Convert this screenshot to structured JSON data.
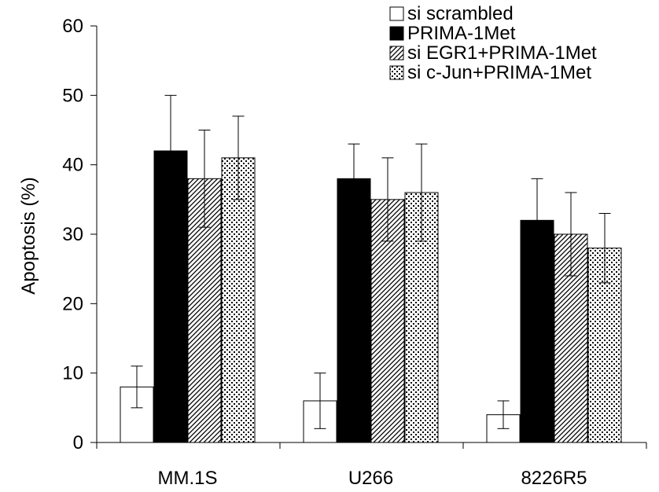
{
  "chart_data": {
    "type": "bar",
    "ylabel": "Apoptosis (%)",
    "xlabel": "",
    "ylim": [
      0,
      60
    ],
    "yticks": [
      0,
      10,
      20,
      30,
      40,
      50,
      60
    ],
    "categories": [
      "MM.1S",
      "U266",
      "8226R5"
    ],
    "legend_position": "top-right",
    "grid": false,
    "series": [
      {
        "name": "si scrambled",
        "fill": "white",
        "values": [
          8,
          6,
          4
        ],
        "errors": [
          3,
          4,
          2
        ]
      },
      {
        "name": "PRIMA-1Met",
        "fill": "black",
        "values": [
          42,
          38,
          32
        ],
        "errors": [
          8,
          5,
          6
        ]
      },
      {
        "name": "si EGR1+PRIMA-1Met",
        "fill": "diagonal-hatch",
        "values": [
          38,
          35,
          30
        ],
        "errors": [
          7,
          6,
          6
        ]
      },
      {
        "name": "si c-Jun+PRIMA-1Met",
        "fill": "dotted",
        "values": [
          41,
          36,
          28
        ],
        "errors": [
          6,
          7,
          5
        ]
      }
    ]
  }
}
